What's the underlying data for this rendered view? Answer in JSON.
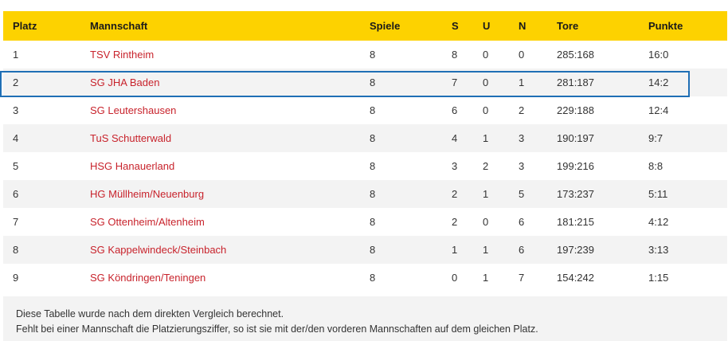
{
  "table": {
    "headers": [
      "Platz",
      "Mannschaft",
      "Spiele",
      "S",
      "U",
      "N",
      "Tore",
      "Punkte"
    ],
    "rows": [
      {
        "platz": "1",
        "team": "TSV Rintheim",
        "spiele": "8",
        "s": "8",
        "u": "0",
        "n": "0",
        "tore": "285:168",
        "punkte": "16:0"
      },
      {
        "platz": "2",
        "team": "SG JHA Baden",
        "spiele": "8",
        "s": "7",
        "u": "0",
        "n": "1",
        "tore": "281:187",
        "punkte": "14:2"
      },
      {
        "platz": "3",
        "team": "SG Leutershausen",
        "spiele": "8",
        "s": "6",
        "u": "0",
        "n": "2",
        "tore": "229:188",
        "punkte": "12:4"
      },
      {
        "platz": "4",
        "team": "TuS Schutterwald",
        "spiele": "8",
        "s": "4",
        "u": "1",
        "n": "3",
        "tore": "190:197",
        "punkte": "9:7"
      },
      {
        "platz": "5",
        "team": "HSG Hanauerland",
        "spiele": "8",
        "s": "3",
        "u": "2",
        "n": "3",
        "tore": "199:216",
        "punkte": "8:8"
      },
      {
        "platz": "6",
        "team": "HG Müllheim/Neuenburg",
        "spiele": "8",
        "s": "2",
        "u": "1",
        "n": "5",
        "tore": "173:237",
        "punkte": "5:11"
      },
      {
        "platz": "7",
        "team": "SG Ottenheim/Altenheim",
        "spiele": "8",
        "s": "2",
        "u": "0",
        "n": "6",
        "tore": "181:215",
        "punkte": "4:12"
      },
      {
        "platz": "8",
        "team": "SG Kappelwindeck/Steinbach",
        "spiele": "8",
        "s": "1",
        "u": "1",
        "n": "6",
        "tore": "197:239",
        "punkte": "3:13"
      },
      {
        "platz": "9",
        "team": "SG Köndringen/Teningen",
        "spiele": "8",
        "s": "0",
        "u": "1",
        "n": "7",
        "tore": "154:242",
        "punkte": "1:15"
      }
    ]
  },
  "footnote": {
    "line1": "Diese Tabelle wurde nach dem direkten Vergleich berechnet.",
    "line2": "Fehlt bei einer Mannschaft die Platzierungsziffer, so ist sie mit der/den vorderen Mannschaften auf dem gleichen Platz."
  },
  "colors": {
    "header_bg": "#fdd200",
    "team_link": "#c8232c",
    "highlight_border": "#1f6fb5",
    "stripe": "#f3f3f3"
  }
}
